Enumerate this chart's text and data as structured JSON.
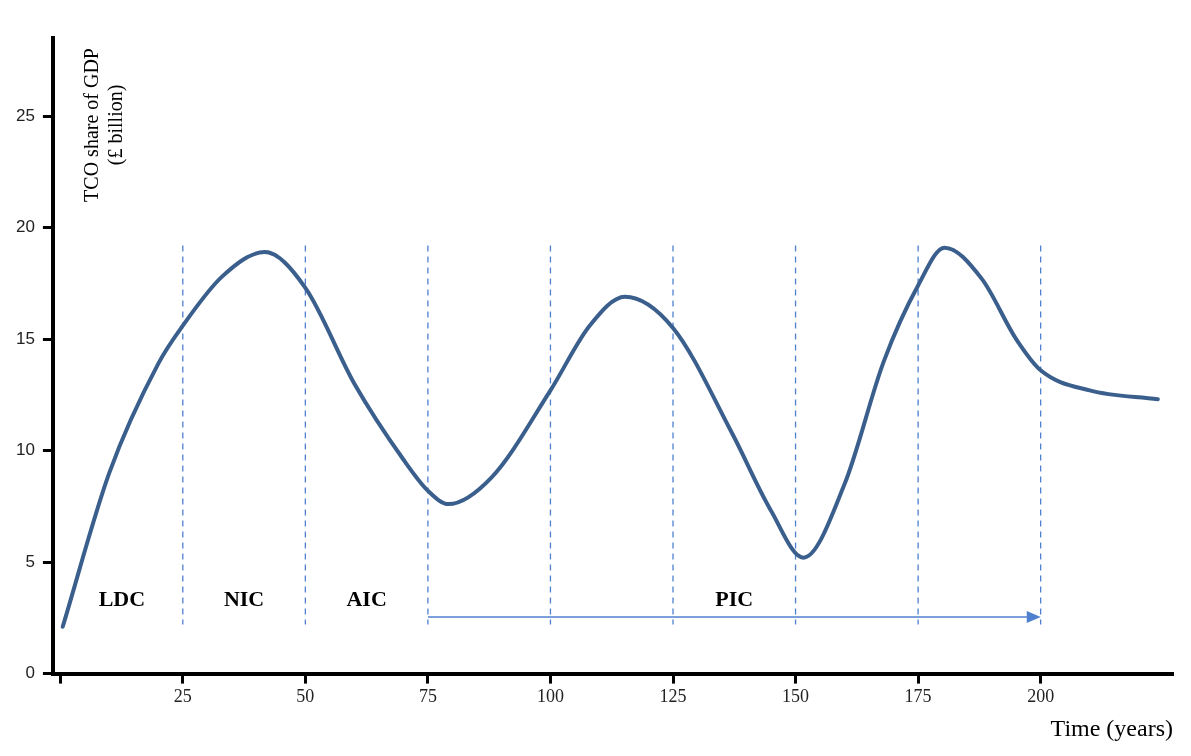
{
  "chart_data": {
    "type": "line",
    "xlabel": "Time (years)",
    "ylabel": "TCO share of GDP\n(£ billion)",
    "x": [
      0.5,
      10,
      20,
      25,
      33,
      41.7,
      50,
      60,
      70,
      75,
      79.2,
      88,
      100,
      108,
      115.2,
      125,
      137,
      145,
      151.6,
      160,
      168,
      175,
      180.4,
      188,
      195,
      200,
      210,
      223.9
    ],
    "series": [
      {
        "color": "#3b5f8d",
        "values": [
          2.1,
          9,
          13.9,
          15.6,
          17.8,
          18.9,
          17.3,
          13,
          9.6,
          8.2,
          7.6,
          8.8,
          12.7,
          15.6,
          16.9,
          15.5,
          10.8,
          7.3,
          5.2,
          8.5,
          14,
          17.4,
          19.1,
          17.7,
          15,
          13.6,
          12.7,
          12.3
        ]
      }
    ],
    "xlim": [
      -1.5,
      227
    ],
    "xticks": [
      {
        "value": 0,
        "label": null
      },
      25,
      50,
      75,
      100,
      125,
      150,
      175,
      200
    ],
    "ylim": [
      0,
      28.5
    ],
    "yticks": [
      0,
      5,
      10,
      15,
      20,
      25
    ],
    "grid": false,
    "legend": false,
    "marker": "none",
    "line_style": "solid",
    "ref_lines": [
      {
        "axis": "x",
        "value": 25,
        "color": "#4f81d0",
        "line_style": "dashed"
      },
      {
        "axis": "x",
        "value": 50,
        "color": "#4f81d0",
        "line_style": "dashed"
      },
      {
        "axis": "x",
        "value": 75,
        "color": "#4f81d0",
        "line_style": "dashed"
      },
      {
        "axis": "x",
        "value": 100,
        "color": "#4f81d0",
        "line_style": "dashed"
      },
      {
        "axis": "x",
        "value": 125,
        "color": "#4f81d0",
        "line_style": "dashed"
      },
      {
        "axis": "x",
        "value": 150,
        "color": "#4f81d0",
        "line_style": "dashed"
      },
      {
        "axis": "x",
        "value": 175,
        "color": "#4f81d0",
        "line_style": "dashed"
      },
      {
        "axis": "x",
        "value": 200,
        "color": "#4f81d0",
        "line_style": "dashed"
      }
    ],
    "annotations": [
      "LDC",
      "NIC",
      "AIC",
      "PIC"
    ]
  }
}
